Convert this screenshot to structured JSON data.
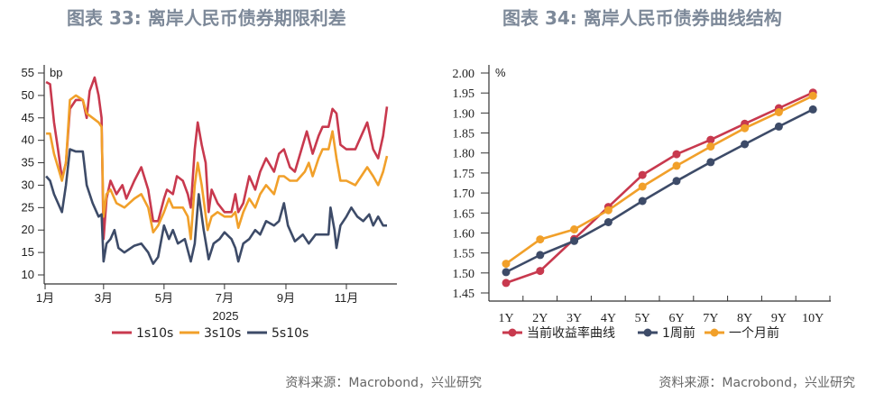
{
  "titles": {
    "left": "图表 33: 离岸人民币债券期限利差",
    "right": "图表 34: 离岸人民币债券曲线结构"
  },
  "sources": {
    "left": "资料来源：Macrobond，兴业研究",
    "right": "资料来源：Macrobond，兴业研究"
  },
  "chart_data": [
    {
      "type": "line",
      "title": "图表 33: 离岸人民币债券期限利差",
      "unit": "bp",
      "xlabel": "2025",
      "ylim": [
        10,
        55
      ],
      "yticks": [
        10,
        15,
        20,
        25,
        30,
        35,
        40,
        45,
        50,
        55
      ],
      "xticks": [
        {
          "date": "2025-01-01",
          "label": "1月"
        },
        {
          "date": "2025-03-01",
          "label": "3月"
        },
        {
          "date": "2025-05-01",
          "label": "5月"
        },
        {
          "date": "2025-07-01",
          "label": "7月"
        },
        {
          "date": "2025-09-01",
          "label": "9月"
        },
        {
          "date": "2025-11-01",
          "label": "11月"
        }
      ],
      "legend": "bottom",
      "series": [
        {
          "name": "1s10s",
          "color": "#c8394e",
          "points": [
            [
              "2025-01-02",
              53
            ],
            [
              "2025-01-06",
              52.5
            ],
            [
              "2025-01-10",
              44
            ],
            [
              "2025-01-14",
              38
            ],
            [
              "2025-01-18",
              31.5
            ],
            [
              "2025-01-22",
              35
            ],
            [
              "2025-01-26",
              47
            ],
            [
              "2025-02-01",
              49
            ],
            [
              "2025-02-08",
              49
            ],
            [
              "2025-02-12",
              45
            ],
            [
              "2025-02-15",
              51
            ],
            [
              "2025-02-20",
              54
            ],
            [
              "2025-02-24",
              50
            ],
            [
              "2025-02-27",
              45
            ],
            [
              "2025-03-01",
              18
            ],
            [
              "2025-03-04",
              27
            ],
            [
              "2025-03-08",
              31
            ],
            [
              "2025-03-14",
              28
            ],
            [
              "2025-03-20",
              30
            ],
            [
              "2025-03-24",
              27
            ],
            [
              "2025-04-01",
              31
            ],
            [
              "2025-04-08",
              34
            ],
            [
              "2025-04-15",
              29
            ],
            [
              "2025-04-20",
              22
            ],
            [
              "2025-04-25",
              22
            ],
            [
              "2025-05-01",
              27
            ],
            [
              "2025-05-04",
              29
            ],
            [
              "2025-05-10",
              28
            ],
            [
              "2025-05-14",
              32
            ],
            [
              "2025-05-20",
              31
            ],
            [
              "2025-05-25",
              28
            ],
            [
              "2025-05-28",
              25
            ],
            [
              "2025-06-01",
              38
            ],
            [
              "2025-06-04",
              44
            ],
            [
              "2025-06-08",
              39
            ],
            [
              "2025-06-12",
              35
            ],
            [
              "2025-06-15",
              24
            ],
            [
              "2025-06-18",
              29
            ],
            [
              "2025-06-24",
              26
            ],
            [
              "2025-07-01",
              24
            ],
            [
              "2025-07-08",
              24
            ],
            [
              "2025-07-12",
              28
            ],
            [
              "2025-07-15",
              24
            ],
            [
              "2025-07-20",
              26
            ],
            [
              "2025-07-26",
              32
            ],
            [
              "2025-08-01",
              29
            ],
            [
              "2025-08-06",
              33
            ],
            [
              "2025-08-12",
              36
            ],
            [
              "2025-08-20",
              33
            ],
            [
              "2025-08-25",
              37
            ],
            [
              "2025-08-30",
              38
            ],
            [
              "2025-09-05",
              34
            ],
            [
              "2025-09-10",
              33
            ],
            [
              "2025-09-18",
              39
            ],
            [
              "2025-09-22",
              42
            ],
            [
              "2025-09-28",
              37
            ],
            [
              "2025-10-04",
              41
            ],
            [
              "2025-10-08",
              43
            ],
            [
              "2025-10-14",
              43
            ],
            [
              "2025-10-18",
              47
            ],
            [
              "2025-10-22",
              46
            ],
            [
              "2025-10-26",
              39
            ],
            [
              "2025-11-01",
              38
            ],
            [
              "2025-11-10",
              38
            ],
            [
              "2025-11-16",
              41
            ],
            [
              "2025-11-22",
              44
            ],
            [
              "2025-11-28",
              38
            ],
            [
              "2025-12-03",
              36
            ],
            [
              "2025-12-08",
              41
            ],
            [
              "2025-12-12",
              47.5
            ]
          ]
        },
        {
          "name": "3s10s",
          "color": "#f1a02a",
          "points": [
            [
              "2025-01-02",
              41.5
            ],
            [
              "2025-01-06",
              41.5
            ],
            [
              "2025-01-10",
              37
            ],
            [
              "2025-01-14",
              34
            ],
            [
              "2025-01-18",
              31
            ],
            [
              "2025-01-22",
              35
            ],
            [
              "2025-01-26",
              49
            ],
            [
              "2025-02-01",
              50
            ],
            [
              "2025-02-08",
              49
            ],
            [
              "2025-02-12",
              46
            ],
            [
              "2025-02-18",
              45
            ],
            [
              "2025-02-24",
              44
            ],
            [
              "2025-02-27",
              43
            ],
            [
              "2025-03-01",
              23
            ],
            [
              "2025-03-04",
              28
            ],
            [
              "2025-03-08",
              29
            ],
            [
              "2025-03-14",
              26
            ],
            [
              "2025-03-22",
              25
            ],
            [
              "2025-04-01",
              27
            ],
            [
              "2025-04-08",
              28
            ],
            [
              "2025-04-15",
              25
            ],
            [
              "2025-04-20",
              19.5
            ],
            [
              "2025-04-25",
              21
            ],
            [
              "2025-05-01",
              24
            ],
            [
              "2025-05-06",
              27
            ],
            [
              "2025-05-10",
              25
            ],
            [
              "2025-05-20",
              25
            ],
            [
              "2025-05-25",
              23
            ],
            [
              "2025-05-28",
              18
            ],
            [
              "2025-06-01",
              30
            ],
            [
              "2025-06-04",
              35
            ],
            [
              "2025-06-08",
              30
            ],
            [
              "2025-06-14",
              20
            ],
            [
              "2025-06-18",
              23
            ],
            [
              "2025-06-24",
              24
            ],
            [
              "2025-07-01",
              23
            ],
            [
              "2025-07-08",
              23
            ],
            [
              "2025-07-12",
              24
            ],
            [
              "2025-07-15",
              20.5
            ],
            [
              "2025-07-20",
              24
            ],
            [
              "2025-07-26",
              27
            ],
            [
              "2025-08-01",
              25
            ],
            [
              "2025-08-06",
              28
            ],
            [
              "2025-08-12",
              30
            ],
            [
              "2025-08-20",
              28
            ],
            [
              "2025-08-25",
              32
            ],
            [
              "2025-08-30",
              32
            ],
            [
              "2025-09-05",
              31
            ],
            [
              "2025-09-12",
              31
            ],
            [
              "2025-09-20",
              33
            ],
            [
              "2025-09-24",
              35
            ],
            [
              "2025-09-28",
              32
            ],
            [
              "2025-10-04",
              36
            ],
            [
              "2025-10-08",
              38
            ],
            [
              "2025-10-14",
              38
            ],
            [
              "2025-10-18",
              42
            ],
            [
              "2025-10-22",
              36
            ],
            [
              "2025-10-26",
              31
            ],
            [
              "2025-11-01",
              31
            ],
            [
              "2025-11-10",
              30
            ],
            [
              "2025-11-16",
              32
            ],
            [
              "2025-11-22",
              34
            ],
            [
              "2025-11-28",
              32
            ],
            [
              "2025-12-03",
              30
            ],
            [
              "2025-12-08",
              33
            ],
            [
              "2025-12-12",
              36.5
            ]
          ]
        },
        {
          "name": "5s10s",
          "color": "#3d4b68",
          "points": [
            [
              "2025-01-02",
              32
            ],
            [
              "2025-01-06",
              31
            ],
            [
              "2025-01-10",
              28
            ],
            [
              "2025-01-14",
              26
            ],
            [
              "2025-01-18",
              24
            ],
            [
              "2025-01-22",
              30
            ],
            [
              "2025-01-26",
              38
            ],
            [
              "2025-02-01",
              37.5
            ],
            [
              "2025-02-08",
              37.5
            ],
            [
              "2025-02-12",
              30
            ],
            [
              "2025-02-18",
              26
            ],
            [
              "2025-02-24",
              23
            ],
            [
              "2025-02-27",
              23.5
            ],
            [
              "2025-03-01",
              13
            ],
            [
              "2025-03-04",
              17
            ],
            [
              "2025-03-08",
              18
            ],
            [
              "2025-03-12",
              20
            ],
            [
              "2025-03-16",
              16
            ],
            [
              "2025-03-22",
              15
            ],
            [
              "2025-04-01",
              16.5
            ],
            [
              "2025-04-08",
              17
            ],
            [
              "2025-04-15",
              15
            ],
            [
              "2025-04-20",
              12.5
            ],
            [
              "2025-04-25",
              14
            ],
            [
              "2025-05-01",
              21
            ],
            [
              "2025-05-06",
              18
            ],
            [
              "2025-05-10",
              20
            ],
            [
              "2025-05-15",
              17
            ],
            [
              "2025-05-22",
              18
            ],
            [
              "2025-05-28",
              13
            ],
            [
              "2025-06-01",
              17
            ],
            [
              "2025-06-05",
              28
            ],
            [
              "2025-06-10",
              20
            ],
            [
              "2025-06-15",
              13.5
            ],
            [
              "2025-06-20",
              17
            ],
            [
              "2025-06-26",
              18
            ],
            [
              "2025-07-01",
              19.5
            ],
            [
              "2025-07-08",
              18
            ],
            [
              "2025-07-12",
              16
            ],
            [
              "2025-07-15",
              13
            ],
            [
              "2025-07-20",
              17
            ],
            [
              "2025-07-26",
              18
            ],
            [
              "2025-08-01",
              20
            ],
            [
              "2025-08-06",
              19
            ],
            [
              "2025-08-12",
              22
            ],
            [
              "2025-08-20",
              21
            ],
            [
              "2025-08-25",
              22
            ],
            [
              "2025-08-30",
              26
            ],
            [
              "2025-09-03",
              21
            ],
            [
              "2025-09-10",
              17.5
            ],
            [
              "2025-09-18",
              19
            ],
            [
              "2025-09-24",
              17
            ],
            [
              "2025-10-01",
              19
            ],
            [
              "2025-10-08",
              19
            ],
            [
              "2025-10-14",
              19
            ],
            [
              "2025-10-16",
              25
            ],
            [
              "2025-10-20",
              20
            ],
            [
              "2025-10-22",
              16
            ],
            [
              "2025-10-26",
              21
            ],
            [
              "2025-11-01",
              23
            ],
            [
              "2025-11-06",
              25
            ],
            [
              "2025-11-12",
              23
            ],
            [
              "2025-11-18",
              22
            ],
            [
              "2025-11-24",
              23.5
            ],
            [
              "2025-11-28",
              21
            ],
            [
              "2025-12-03",
              23
            ],
            [
              "2025-12-08",
              21
            ],
            [
              "2025-12-12",
              21
            ]
          ]
        }
      ]
    },
    {
      "type": "line",
      "title": "图表 34: 离岸人民币债券曲线结构",
      "unit": "%",
      "ylim": [
        1.45,
        2.0
      ],
      "yticks": [
        "1.45",
        "1.50",
        "1.55",
        "1.60",
        "1.65",
        "1.70",
        "1.75",
        "1.80",
        "1.85",
        "1.90",
        "1.95",
        "2.00"
      ],
      "categories": [
        "1Y",
        "2Y",
        "3Y",
        "4Y",
        "5Y",
        "6Y",
        "7Y",
        "8Y",
        "9Y",
        "10Y"
      ],
      "legend": "bottom",
      "markers": true,
      "series": [
        {
          "name": "当前收益率曲线",
          "color": "#c8394e",
          "values": [
            1.475,
            1.505,
            1.585,
            1.665,
            1.745,
            1.797,
            1.833,
            1.873,
            1.912,
            1.951
          ]
        },
        {
          "name": "1周前",
          "color": "#3d4b68",
          "values": [
            1.502,
            1.545,
            1.58,
            1.627,
            1.68,
            1.73,
            1.777,
            1.822,
            1.866,
            1.909
          ]
        },
        {
          "name": "一个月前",
          "color": "#f1a02a",
          "values": [
            1.523,
            1.584,
            1.609,
            1.657,
            1.716,
            1.768,
            1.816,
            1.862,
            1.902,
            1.943
          ]
        }
      ]
    }
  ]
}
